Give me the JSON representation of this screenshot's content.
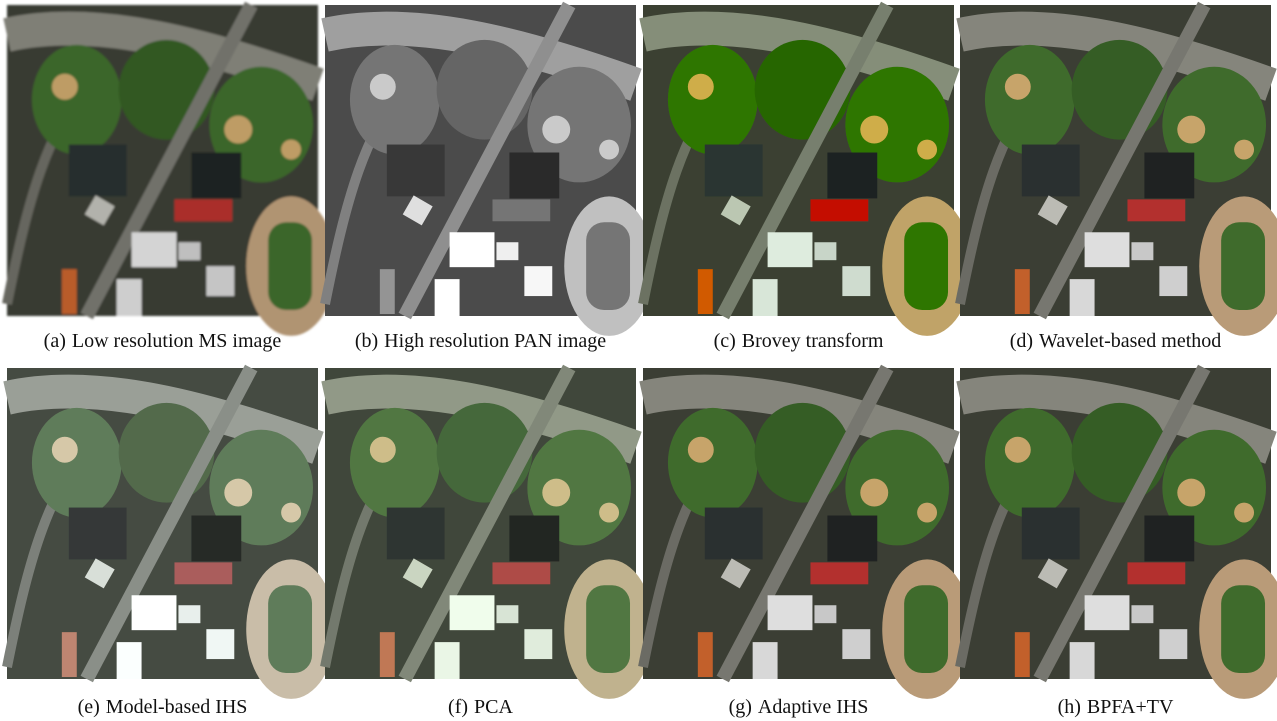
{
  "panels": [
    {
      "tag": "(a)",
      "label": "Low resolution MS image"
    },
    {
      "tag": "(b)",
      "label": "High resolution PAN image"
    },
    {
      "tag": "(c)",
      "label": "Brovey transform"
    },
    {
      "tag": "(d)",
      "label": "Wavelet-based method"
    },
    {
      "tag": "(e)",
      "label": "Model-based IHS"
    },
    {
      "tag": "(f)",
      "label": "PCA"
    },
    {
      "tag": "(g)",
      "label": "Adaptive IHS"
    },
    {
      "tag": "(h)",
      "label": "BPFA+TV"
    }
  ]
}
